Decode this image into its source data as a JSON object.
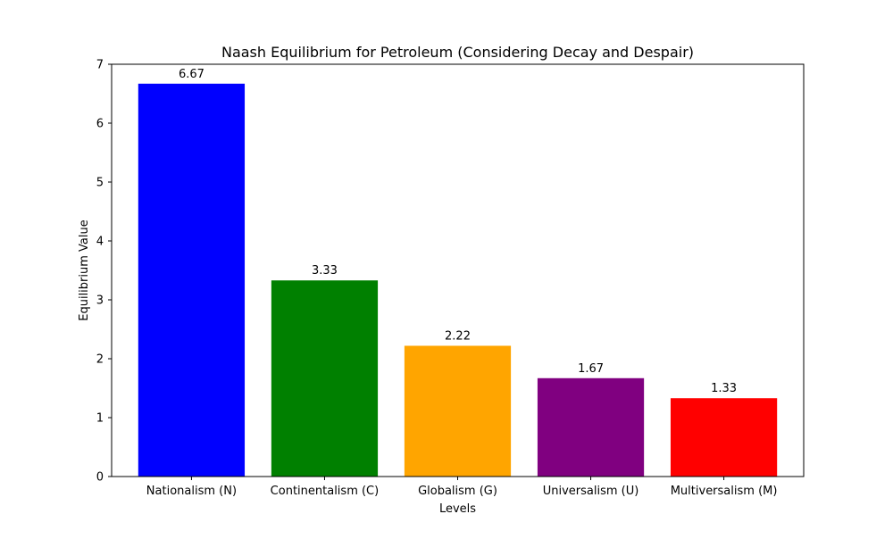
{
  "chart_data": {
    "type": "bar",
    "title": "Naash Equilibrium for Petroleum (Considering Decay and Despair)",
    "xlabel": "Levels",
    "ylabel": "Equilibrium Value",
    "categories": [
      "Nationalism (N)",
      "Continentalism (C)",
      "Globalism (G)",
      "Universalism (U)",
      "Multiversalism (M)"
    ],
    "values": [
      6.67,
      3.33,
      2.22,
      1.67,
      1.33
    ],
    "value_labels": [
      "6.67",
      "3.33",
      "2.22",
      "1.67",
      "1.33"
    ],
    "colors": [
      "#0000ff",
      "#008000",
      "#ffa500",
      "#800080",
      "#ff0000"
    ],
    "ylim": [
      0,
      7
    ],
    "yticks": [
      0,
      1,
      2,
      3,
      4,
      5,
      6,
      7
    ],
    "grid": false,
    "legend": "none"
  }
}
